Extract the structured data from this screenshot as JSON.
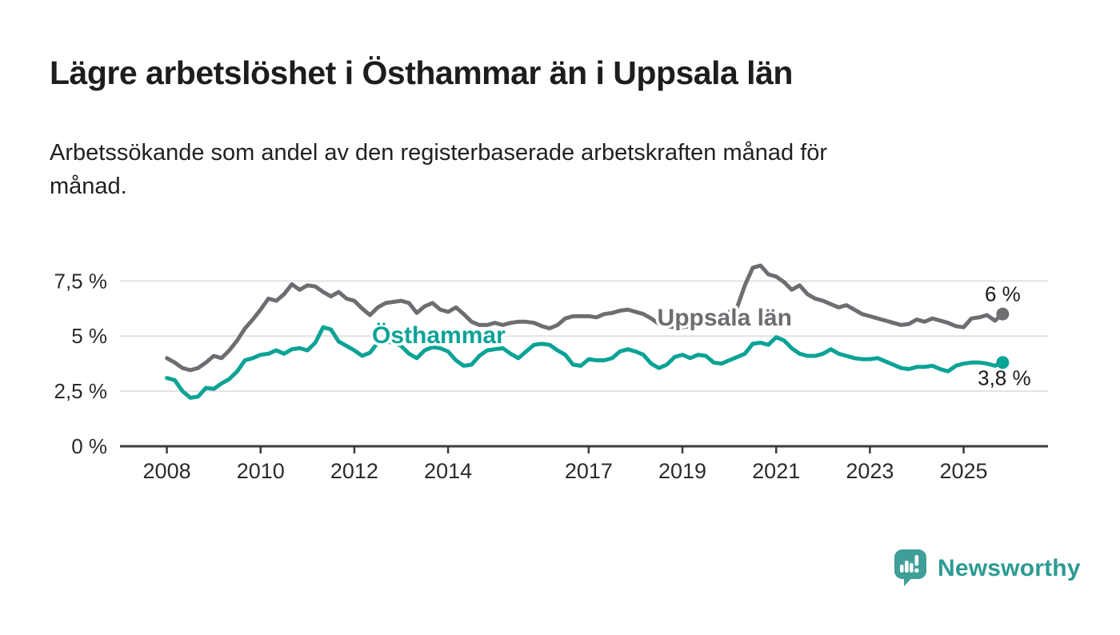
{
  "header": {
    "title": "Lägre arbetslöshet i Östhammar än i Uppsala län"
  },
  "subtitle": {
    "lines": [
      "Arbetssökande som andel av den registerbaserade arbetskraften månad för",
      "månad."
    ]
  },
  "chart_data": {
    "type": "line",
    "title": "Lägre arbetslöshet i Östhammar än i Uppsala län",
    "subtitle": "Arbetssökande som andel av den registerbaserade arbetskraften månad för månad.",
    "x_start": 2008.0,
    "x_step_years": 0.166667,
    "x_axis": {
      "ticks": [
        2008,
        2010,
        2012,
        2014,
        2017,
        2019,
        2021,
        2023,
        2025
      ],
      "xlim": [
        2007.0,
        2026.8
      ]
    },
    "y_axis": {
      "ticks": [
        0,
        2.5,
        5,
        7.5
      ],
      "tick_labels": [
        "0 %",
        "2,5 %",
        "5 %",
        "7,5 %"
      ],
      "ylim": [
        0,
        8.6
      ],
      "grid": true
    },
    "legend_position": "inline-labels",
    "series": [
      {
        "name": "Uppsala län",
        "color": "#6d6d72",
        "label_anchor": {
          "x": 2019.9,
          "y": 5.85
        },
        "end_label": "6 %",
        "end_label_offset": [
          0,
          -16
        ],
        "values": [
          4.0,
          3.8,
          3.55,
          3.45,
          3.55,
          3.8,
          4.1,
          4.0,
          4.35,
          4.8,
          5.35,
          5.75,
          6.2,
          6.7,
          6.6,
          6.9,
          7.35,
          7.1,
          7.3,
          7.25,
          7.0,
          6.8,
          7.0,
          6.7,
          6.6,
          6.25,
          5.95,
          6.3,
          6.5,
          6.55,
          6.6,
          6.5,
          6.05,
          6.35,
          6.5,
          6.2,
          6.1,
          6.3,
          6.0,
          5.65,
          5.5,
          5.5,
          5.6,
          5.5,
          5.6,
          5.65,
          5.65,
          5.6,
          5.45,
          5.35,
          5.5,
          5.8,
          5.9,
          5.9,
          5.9,
          5.85,
          6.0,
          6.05,
          6.15,
          6.2,
          6.1,
          6.0,
          5.8,
          5.55,
          5.45,
          5.4,
          5.4,
          5.45,
          5.5,
          5.55,
          5.6,
          5.8,
          6.1,
          6.3,
          7.3,
          8.1,
          8.2,
          7.8,
          7.7,
          7.45,
          7.1,
          7.3,
          6.9,
          6.7,
          6.6,
          6.45,
          6.3,
          6.4,
          6.2,
          6.0,
          5.9,
          5.8,
          5.7,
          5.6,
          5.5,
          5.55,
          5.75,
          5.65,
          5.8,
          5.7,
          5.6,
          5.45,
          5.4,
          5.8,
          5.85,
          5.95,
          5.7,
          6.0
        ]
      },
      {
        "name": "Östhammar",
        "color": "#0aa396",
        "label_anchor": {
          "x": 2013.8,
          "y": 5.05
        },
        "end_label": "3,8 %",
        "end_label_offset": [
          2,
          28
        ],
        "values": [
          3.1,
          3.0,
          2.5,
          2.2,
          2.25,
          2.65,
          2.6,
          2.85,
          3.05,
          3.4,
          3.9,
          4.0,
          4.15,
          4.2,
          4.35,
          4.2,
          4.4,
          4.45,
          4.35,
          4.7,
          5.4,
          5.3,
          4.75,
          4.55,
          4.35,
          4.1,
          4.25,
          4.7,
          4.75,
          4.7,
          4.55,
          4.2,
          4.0,
          4.35,
          4.5,
          4.45,
          4.3,
          3.9,
          3.65,
          3.7,
          4.1,
          4.35,
          4.4,
          4.45,
          4.2,
          4.0,
          4.3,
          4.6,
          4.65,
          4.6,
          4.35,
          4.15,
          3.7,
          3.65,
          3.95,
          3.9,
          3.9,
          4.0,
          4.3,
          4.4,
          4.3,
          4.15,
          3.75,
          3.55,
          3.7,
          4.05,
          4.15,
          4.0,
          4.15,
          4.1,
          3.8,
          3.75,
          3.9,
          4.05,
          4.2,
          4.65,
          4.7,
          4.6,
          4.95,
          4.8,
          4.45,
          4.2,
          4.1,
          4.1,
          4.2,
          4.4,
          4.2,
          4.1,
          4.0,
          3.95,
          3.95,
          4.0,
          3.85,
          3.7,
          3.55,
          3.5,
          3.6,
          3.6,
          3.65,
          3.5,
          3.4,
          3.65,
          3.75,
          3.8,
          3.8,
          3.75,
          3.65,
          3.8
        ]
      }
    ]
  },
  "branding": {
    "name": "Newsworthy",
    "logo_color": "#3f9e98",
    "text_color": "#2d9b93"
  },
  "colors": {
    "title": "#1d1d1f",
    "axis": "#3c3c3c",
    "grid": "#e2e2e2",
    "tick_label": "#2b2b2b",
    "end_label": "#1a1a1a",
    "background": "#ffffff"
  }
}
